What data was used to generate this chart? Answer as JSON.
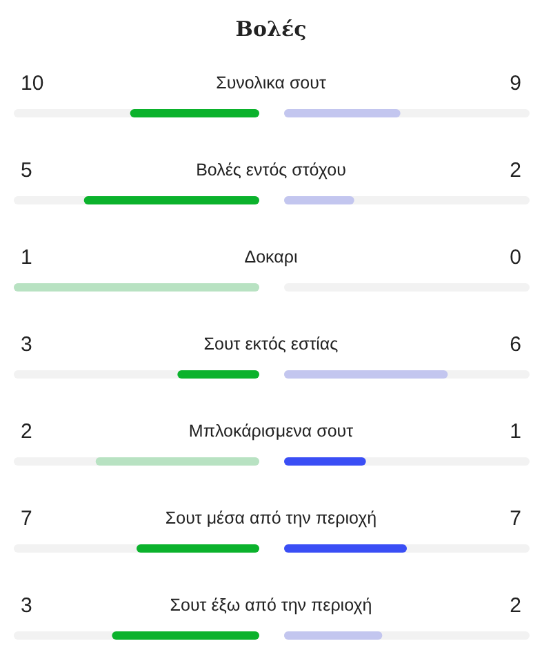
{
  "chart_data": {
    "type": "other",
    "title": "Βολές",
    "categories": [
      "Συνολικα σουτ",
      "Βολές εντός στόχου",
      "Δοκαρι",
      "Σουτ εκτός εστίας",
      "Μπλοκάρισμενα σουτ",
      "Σουτ μέσα από την περιοχή",
      "Σουτ έξω από την περιοχή"
    ],
    "data_labels": true,
    "series": [
      {
        "colors": [
          "#0bb22c",
          "#0bb22c",
          "#b8e2c2",
          "#0bb22c",
          "#b8e2c2",
          "#0bb22c",
          "#0bb22c"
        ],
        "values": [
          10,
          5,
          1,
          3,
          2,
          7,
          3
        ]
      },
      {
        "colors": [
          "#c3c6ef",
          "#c3c6ef",
          "#c3c6ef",
          "#c3c6ef",
          "#3a4ef5",
          "#3a4ef5",
          "#c3c6ef"
        ],
        "values": [
          9,
          2,
          0,
          6,
          1,
          7,
          2
        ]
      }
    ]
  }
}
